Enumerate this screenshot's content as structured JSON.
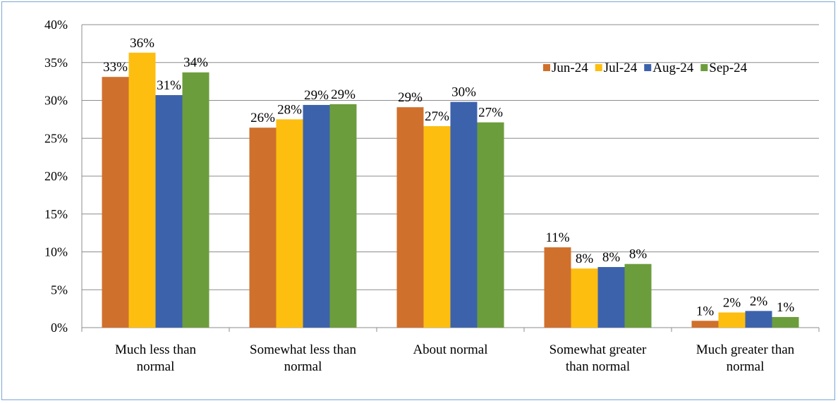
{
  "chart_data": {
    "type": "bar",
    "categories": [
      [
        "Much less than",
        "normal"
      ],
      [
        "Somewhat less than",
        "normal"
      ],
      [
        "About normal"
      ],
      [
        "Somewhat greater",
        "than normal"
      ],
      [
        "Much greater than",
        "normal"
      ]
    ],
    "series": [
      {
        "name": "Jun-24",
        "color": "#d0702d",
        "values": [
          33.1,
          26.4,
          29.1,
          10.6,
          0.9
        ],
        "labels": [
          "33%",
          "26%",
          "29%",
          "11%",
          "1%"
        ]
      },
      {
        "name": "Jul-24",
        "color": "#fdbe10",
        "values": [
          36.3,
          27.5,
          26.6,
          7.8,
          2.0
        ],
        "labels": [
          "36%",
          "28%",
          "27%",
          "8%",
          "2%"
        ]
      },
      {
        "name": "Aug-24",
        "color": "#3d62ac",
        "values": [
          30.7,
          29.4,
          29.8,
          8.0,
          2.2
        ],
        "labels": [
          "31%",
          "29%",
          "30%",
          "8%",
          "2%"
        ]
      },
      {
        "name": "Sep-24",
        "color": "#6c9d3c",
        "values": [
          33.7,
          29.5,
          27.1,
          8.4,
          1.4
        ],
        "labels": [
          "34%",
          "29%",
          "27%",
          "8%",
          "1%"
        ]
      }
    ],
    "yticks": [
      "0%",
      "5%",
      "10%",
      "15%",
      "20%",
      "25%",
      "30%",
      "35%",
      "40%"
    ],
    "ylim": [
      0,
      40
    ],
    "grid": true,
    "legend": "top-right"
  }
}
